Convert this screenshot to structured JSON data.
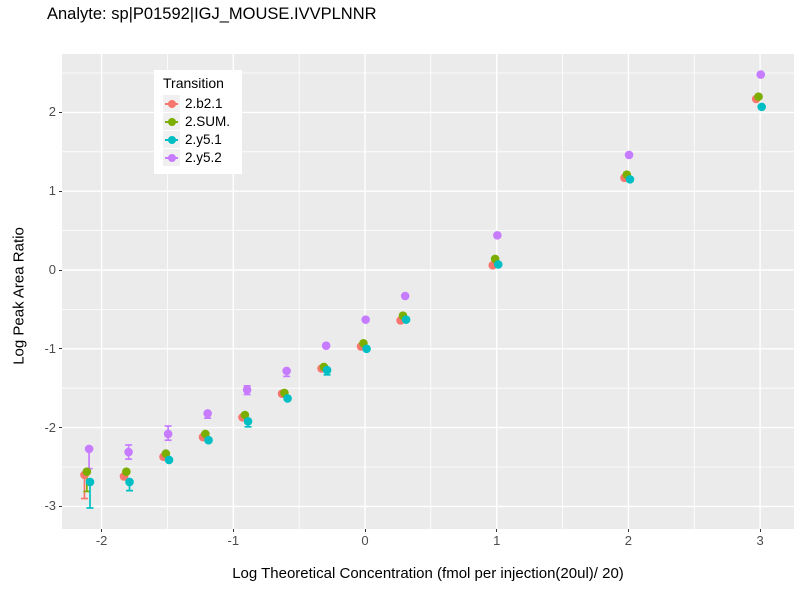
{
  "title": "Analyte: sp|P01592|IGJ_MOUSE.IVVPLNNR",
  "chart_data": {
    "type": "scatter",
    "title": "Analyte: sp|P01592|IGJ_MOUSE.IVVPLNNR",
    "xlabel": "Log Theoretical Concentration (fmol per injection(20ul)/ 20)",
    "ylabel": "Log Peak Area Ratio",
    "xlim": [
      -2.3,
      3.26
    ],
    "ylim": [
      -3.28,
      2.74
    ],
    "x_major_ticks": [
      -2,
      -1,
      0,
      1,
      2,
      3
    ],
    "x_minor_ticks": [
      -1.5,
      -0.5,
      0.5,
      1.5,
      2.5
    ],
    "y_major_ticks": [
      2,
      1,
      0,
      -1,
      -2,
      -3
    ],
    "y_minor_ticks": [
      2.5,
      1.5,
      0.5,
      -0.5,
      -1.5,
      -2.5
    ],
    "grid": true,
    "panel_bg": "#EBEBEB",
    "grid_color": "#FFFFFF",
    "tick_label_color": "#4d4d4d",
    "legend": {
      "title": "Transition",
      "position": "top-left-inside"
    },
    "x": [
      -2.1,
      -1.8,
      -1.5,
      -1.2,
      -0.9,
      -0.6,
      -0.3,
      0,
      0.3,
      1,
      2,
      3
    ],
    "series": [
      {
        "name": "2.b2.1",
        "color": "#F8766D",
        "dx": -0.03,
        "y": [
          -2.6,
          -2.62,
          -2.37,
          -2.12,
          -1.87,
          -1.57,
          -1.25,
          -0.97,
          -0.64,
          0.06,
          1.17,
          2.17
        ],
        "err_lo": [
          -2.9,
          null,
          null,
          null,
          null,
          null,
          null,
          null,
          null,
          null,
          null,
          null
        ],
        "err_hi": [
          null,
          null,
          null,
          null,
          null,
          null,
          null,
          null,
          null,
          null,
          null,
          null
        ]
      },
      {
        "name": "2.SUM.",
        "color": "#7CAE00",
        "dx": -0.012,
        "y": [
          -2.56,
          -2.56,
          -2.33,
          -2.08,
          -1.84,
          -1.56,
          -1.23,
          -0.93,
          -0.58,
          0.14,
          1.21,
          2.2
        ],
        "err_lo": [
          -2.81,
          null,
          null,
          null,
          null,
          null,
          null,
          null,
          null,
          null,
          null,
          null
        ],
        "err_hi": [
          null,
          null,
          null,
          null,
          null,
          null,
          null,
          null,
          null,
          null,
          null,
          null
        ]
      },
      {
        "name": "2.y5.1",
        "color": "#00BFC4",
        "dx": 0.012,
        "y": [
          -2.69,
          -2.69,
          -2.41,
          -2.16,
          -1.92,
          -1.63,
          -1.27,
          -1.0,
          -0.63,
          0.07,
          1.15,
          2.07
        ],
        "err_lo": [
          -3.02,
          -2.8,
          null,
          null,
          -1.99,
          null,
          -1.33,
          null,
          null,
          null,
          null,
          null
        ],
        "err_hi": [
          null,
          null,
          null,
          null,
          null,
          null,
          null,
          null,
          null,
          null,
          null,
          null
        ]
      },
      {
        "name": "2.y5.2",
        "color": "#C77CFF",
        "dx": 0.005,
        "y": [
          -2.27,
          -2.31,
          -2.08,
          -1.82,
          -1.52,
          -1.28,
          -0.96,
          -0.63,
          -0.33,
          0.44,
          1.46,
          2.48
        ],
        "err_lo": [
          -2.52,
          -2.4,
          -2.16,
          -1.88,
          -1.58,
          -1.35,
          null,
          null,
          null,
          null,
          null,
          null
        ],
        "err_hi": [
          null,
          -2.22,
          -1.98,
          null,
          -1.47,
          null,
          null,
          null,
          null,
          null,
          null,
          null
        ]
      }
    ]
  }
}
